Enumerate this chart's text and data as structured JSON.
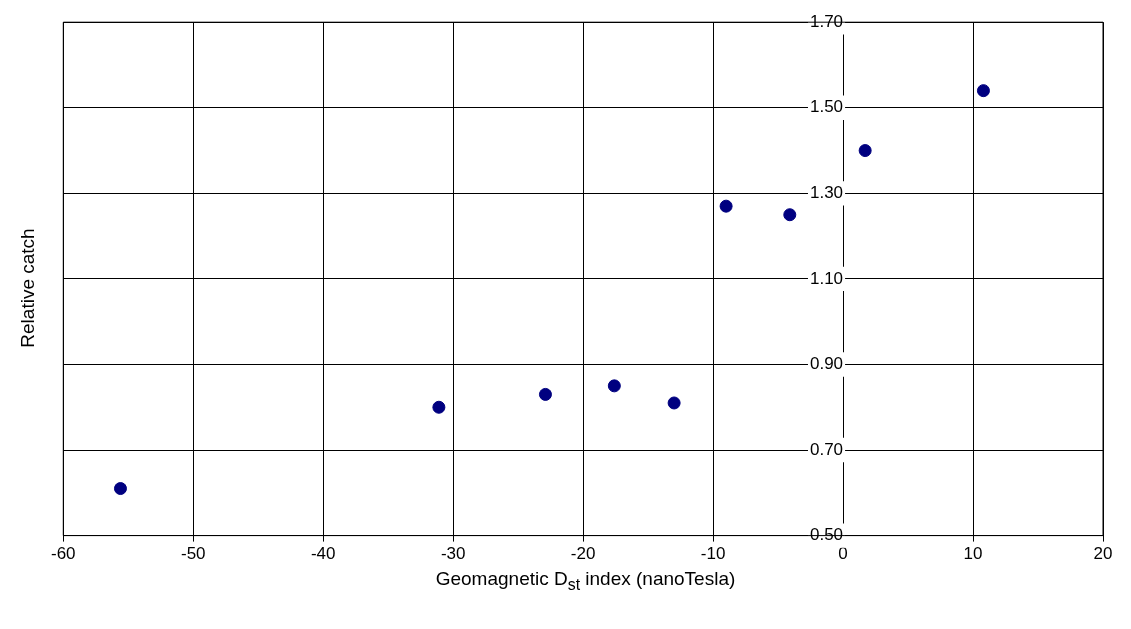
{
  "chart_data": {
    "type": "scatter",
    "xlabel": "Geomagnetic D$_{st}$ index (nanoTesla)",
    "ylabel": "Relative catch",
    "x": [
      -55.6,
      -31.1,
      -22.9,
      -17.6,
      -13.0,
      -9.0,
      -4.1,
      1.7,
      10.8
    ],
    "series": [
      {
        "color": "#000080",
        "values": [
          0.61,
          0.8,
          0.83,
          0.85,
          0.81,
          1.27,
          1.25,
          1.4,
          1.54
        ]
      }
    ],
    "xlim": [
      -60,
      20
    ],
    "xticks": [
      -60,
      -50,
      -40,
      -30,
      -20,
      -10,
      0,
      10,
      20
    ],
    "ylim": [
      0.5,
      1.7
    ],
    "yticks": [
      {
        "value": 0.5,
        "label": "0.50"
      },
      {
        "value": 0.7,
        "label": "0.70"
      },
      {
        "value": 0.9,
        "label": "0.90"
      },
      {
        "value": 1.1,
        "label": "1.10"
      },
      {
        "value": 1.3,
        "label": "1.30"
      },
      {
        "value": 1.5,
        "label": "1.50"
      },
      {
        "value": 1.7,
        "label": "1.70"
      }
    ],
    "grid": true,
    "marker": "circle",
    "legend": false
  }
}
